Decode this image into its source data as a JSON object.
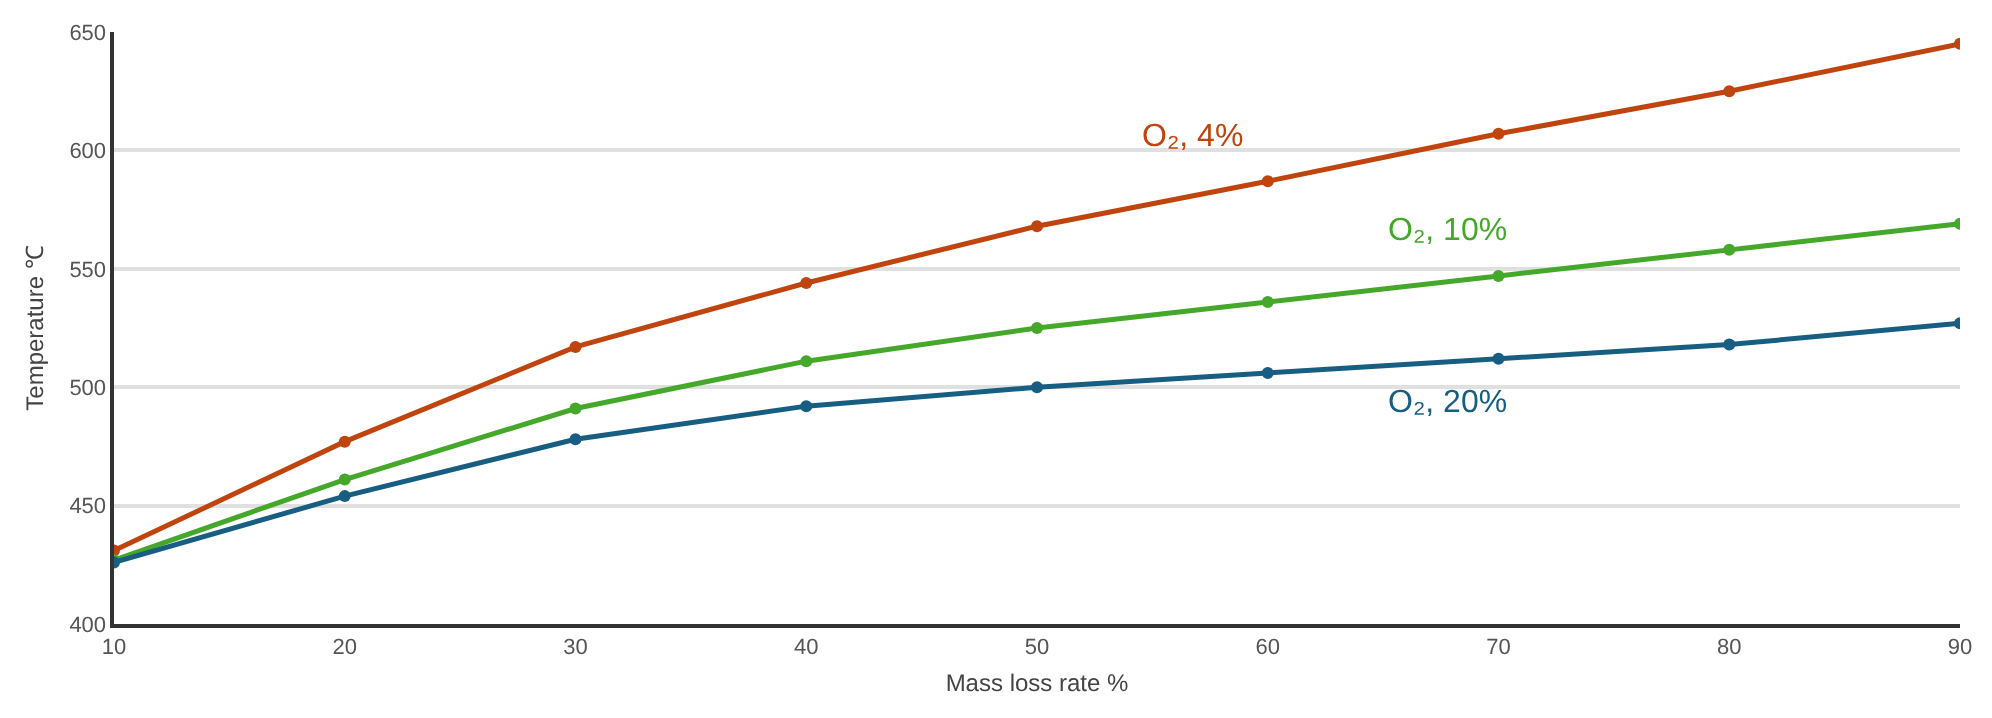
{
  "chart_data": {
    "type": "line",
    "xlabel": "Mass loss rate %",
    "ylabel": "Temperature ℃",
    "x": [
      10,
      20,
      30,
      40,
      50,
      60,
      70,
      80,
      90
    ],
    "series": [
      {
        "name": "O₂, 4%",
        "color": "#c0440e",
        "values": [
          431,
          477,
          517,
          544,
          568,
          587,
          607,
          625,
          645
        ]
      },
      {
        "name": "O₂, 10%",
        "color": "#45a82a",
        "values": [
          427,
          461,
          491,
          511,
          525,
          536,
          547,
          558,
          569
        ]
      },
      {
        "name": "O₂, 20%",
        "color": "#175e82",
        "values": [
          426,
          454,
          478,
          492,
          500,
          506,
          512,
          518,
          527
        ]
      }
    ],
    "xlim": [
      10,
      90
    ],
    "xticks": [
      10,
      20,
      30,
      40,
      50,
      60,
      70,
      80,
      90
    ],
    "ylim": [
      400,
      650
    ],
    "yticks": [
      400,
      450,
      500,
      550,
      600,
      650
    ],
    "grid": "y",
    "marker": "circle",
    "line_style": "solid"
  }
}
